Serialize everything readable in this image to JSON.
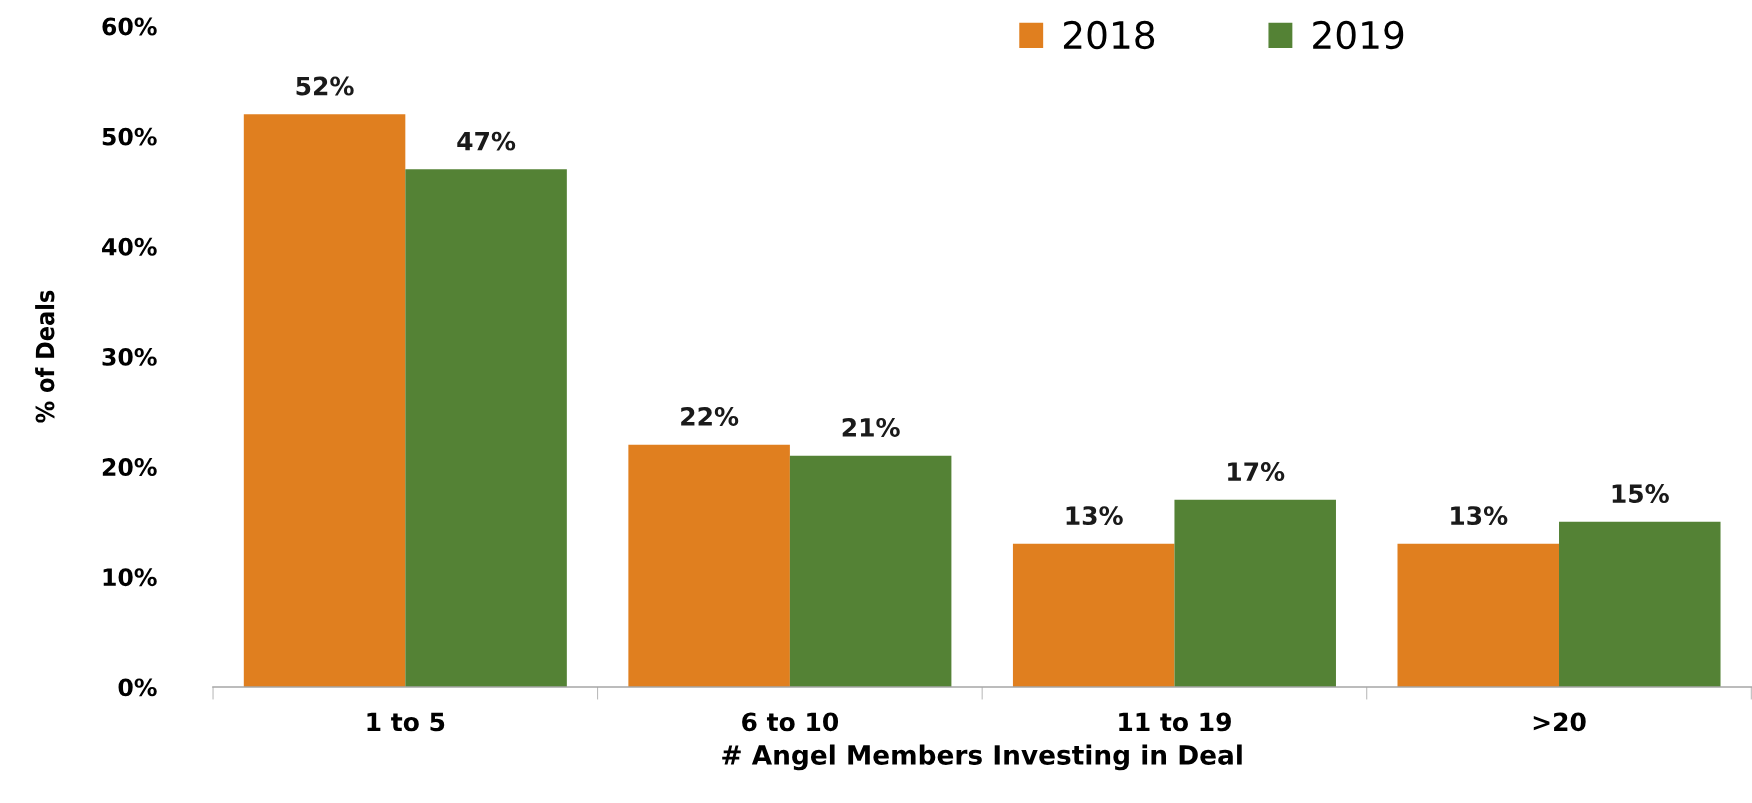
{
  "chart_data": {
    "type": "bar",
    "xlabel": "# Angel Members Investing in Deal",
    "ylabel": "% of Deals",
    "categories": [
      "1 to 5",
      "6 to 10",
      "11 to 19",
      ">20"
    ],
    "series": [
      {
        "name": "2018",
        "color": "#e07f1f",
        "values": [
          52,
          22,
          13,
          13
        ],
        "value_labels": [
          "52%",
          "22%",
          "13%",
          "13%"
        ]
      },
      {
        "name": "2019",
        "color": "#548235",
        "values": [
          47,
          21,
          17,
          15
        ],
        "value_labels": [
          "47%",
          "21%",
          "17%",
          "15%"
        ]
      }
    ],
    "ylim": [
      0,
      60
    ],
    "yticks": [
      {
        "value": 0,
        "label": "0%"
      },
      {
        "value": 10,
        "label": "10%"
      },
      {
        "value": 20,
        "label": "20%"
      },
      {
        "value": 30,
        "label": "30%"
      },
      {
        "value": 40,
        "label": "40%"
      },
      {
        "value": 50,
        "label": "50%"
      },
      {
        "value": 60,
        "label": "60%"
      }
    ],
    "grid": false,
    "legend": "top"
  }
}
